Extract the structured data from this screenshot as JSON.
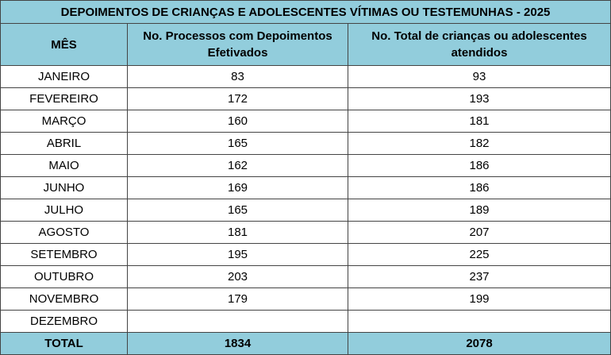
{
  "table": {
    "title": "DEPOIMENTOS DE CRIANÇAS E ADOLESCENTES VÍTIMAS OU TESTEMUNHAS - 2025",
    "header": [
      "MÊS",
      "No. Processos com Depoimentos Efetivados",
      "No. Total de crianças ou adolescentes atendidos"
    ],
    "rows": [
      [
        "JANEIRO",
        83,
        93
      ],
      [
        "FEVEREIRO",
        172,
        193
      ],
      [
        "MARÇO",
        160,
        181
      ],
      [
        "ABRIL",
        165,
        182
      ],
      [
        "MAIO",
        162,
        186
      ],
      [
        "JUNHO",
        169,
        186
      ],
      [
        "JULHO",
        165,
        189
      ],
      [
        "AGOSTO",
        181,
        207
      ],
      [
        "SETEMBRO",
        195,
        225
      ],
      [
        "OUTUBRO",
        203,
        237
      ],
      [
        "NOVEMBRO",
        179,
        199
      ],
      [
        "DEZEMBRO"
      ]
    ],
    "total": [
      "TOTAL",
      1834,
      2078
    ]
  }
}
